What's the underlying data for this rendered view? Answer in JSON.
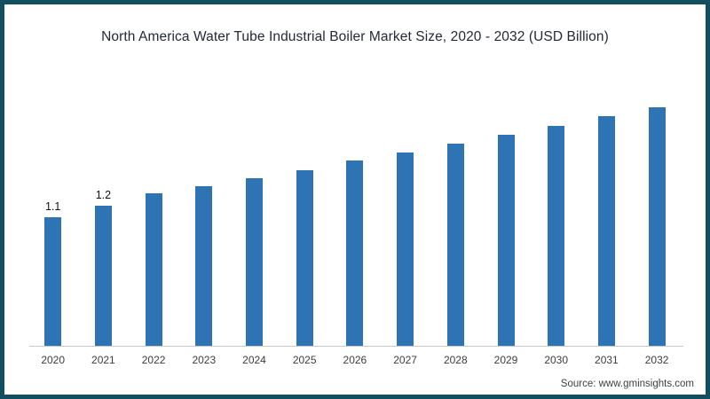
{
  "frame": {
    "border_color": "#114e60",
    "background": "#ffffff"
  },
  "chart": {
    "source": "Source: www.gminsights.com"
  },
  "chart_data": {
    "type": "bar",
    "title": "North America Water Tube Industrial Boiler Market Size, 2020 - 2032 (USD Billion)",
    "unit": "USD Billion",
    "categories": [
      "2020",
      "2021",
      "2022",
      "2023",
      "2024",
      "2025",
      "2026",
      "2027",
      "2028",
      "2029",
      "2030",
      "2031",
      "2032"
    ],
    "values": [
      1.1,
      1.2,
      1.3,
      1.36,
      1.43,
      1.5,
      1.58,
      1.65,
      1.73,
      1.8,
      1.88,
      1.96,
      2.04
    ],
    "data_labels": [
      "1.1",
      "1.2",
      "",
      "",
      "",
      "",
      "",
      "",
      "",
      "",
      "",
      "",
      ""
    ],
    "xlabel": "",
    "ylabel": "",
    "ylim": [
      0,
      2.2
    ],
    "grid": false,
    "legend": "none",
    "bar_color": "#2e74b5",
    "axis_line_color": "#c9c9c9",
    "source": "Source: www.gminsights.com"
  }
}
